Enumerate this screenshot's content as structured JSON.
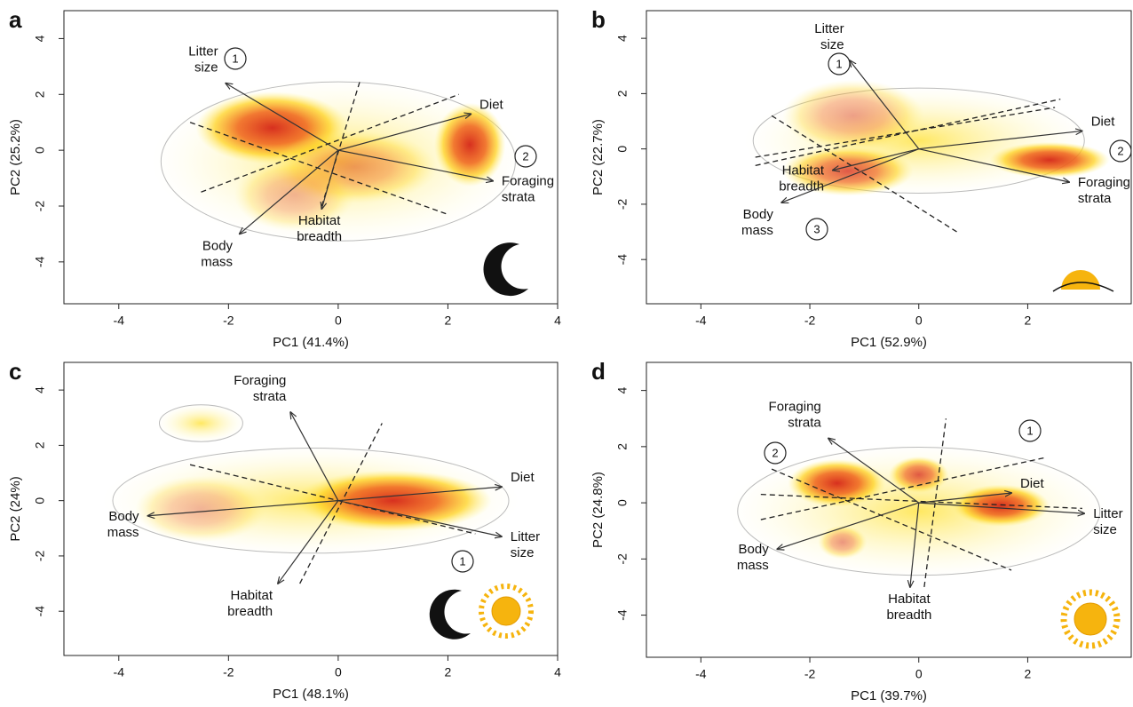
{
  "chart_data": [
    {
      "type": "biplot",
      "panel": "a",
      "xlabel": "PC1 (41.4%)",
      "ylabel": "PC2 (25.2%)",
      "xlim": [
        -5,
        4
      ],
      "ylim": [
        -5.5,
        5
      ],
      "xticks": [
        -4,
        -2,
        0,
        2,
        4
      ],
      "yticks": [
        4,
        2,
        0,
        -2,
        -4
      ],
      "arrows": [
        {
          "label": [
            "Litter",
            "size"
          ],
          "x": -2.05,
          "y": 2.4
        },
        {
          "label": [
            "Diet"
          ],
          "x": 2.42,
          "y": 1.3
        },
        {
          "label": [
            "Foraging",
            "strata"
          ],
          "x": 2.82,
          "y": -1.1
        },
        {
          "label": [
            "Habitat",
            "breadth"
          ],
          "x": -0.3,
          "y": -2.1
        },
        {
          "label": [
            "Body",
            "mass"
          ],
          "x": -1.8,
          "y": -3.0
        }
      ],
      "annotations": [
        "1",
        "2"
      ]
    },
    {
      "type": "biplot",
      "panel": "b",
      "xlabel": "PC1 (52.9%)",
      "ylabel": "PC2 (22.7%)",
      "xlim": [
        -5,
        3.9
      ],
      "ylim": [
        -5.6,
        5
      ],
      "xticks": [
        -4,
        -2,
        0,
        2
      ],
      "yticks": [
        4,
        2,
        0,
        -2,
        -4
      ],
      "arrows": [
        {
          "label": [
            "Litter",
            "size"
          ],
          "x": -1.27,
          "y": 3.2
        },
        {
          "label": [
            "Diet"
          ],
          "x": 3.0,
          "y": 0.65
        },
        {
          "label": [
            "Foraging",
            "strata"
          ],
          "x": 2.76,
          "y": -1.2
        },
        {
          "label": [
            "Habitat",
            "breadth"
          ],
          "x": -1.58,
          "y": -0.77
        },
        {
          "label": [
            "Body",
            "mass"
          ],
          "x": -2.52,
          "y": -1.94
        }
      ],
      "annotations": [
        "1",
        "2",
        "3"
      ]
    },
    {
      "type": "biplot",
      "panel": "c",
      "xlabel": "PC1 (48.1%)",
      "ylabel": "PC2 (24%)",
      "xlim": [
        -5,
        4
      ],
      "ylim": [
        -5.6,
        5
      ],
      "xticks": [
        -4,
        -2,
        0,
        2,
        4
      ],
      "yticks": [
        4,
        2,
        0,
        -2,
        -4
      ],
      "arrows": [
        {
          "label": [
            "Foraging",
            "strata"
          ],
          "x": -0.87,
          "y": 3.2
        },
        {
          "label": [
            "Diet"
          ],
          "x": 2.98,
          "y": 0.5
        },
        {
          "label": [
            "Litter",
            "size"
          ],
          "x": 2.98,
          "y": -1.3
        },
        {
          "label": [
            "Habitat",
            "breadth"
          ],
          "x": -1.1,
          "y": -3.0
        },
        {
          "label": [
            "Body",
            "mass"
          ],
          "x": -3.47,
          "y": -0.55
        }
      ],
      "annotations": [
        "1"
      ]
    },
    {
      "type": "biplot",
      "panel": "d",
      "xlabel": "PC1 (39.7%)",
      "ylabel": "PC2 (24.8%)",
      "xlim": [
        -5,
        3.9
      ],
      "ylim": [
        -5.5,
        5
      ],
      "xticks": [
        -4,
        -2,
        0,
        2
      ],
      "yticks": [
        4,
        2,
        0,
        -2,
        -4
      ],
      "arrows": [
        {
          "label": [
            "Foraging",
            "strata"
          ],
          "x": -1.66,
          "y": 2.3
        },
        {
          "label": [
            "Diet"
          ],
          "x": 1.7,
          "y": 0.35
        },
        {
          "label": [
            "Litter",
            "size"
          ],
          "x": 3.04,
          "y": -0.38
        },
        {
          "label": [
            "Habitat",
            "breadth"
          ],
          "x": -0.16,
          "y": -3.0
        },
        {
          "label": [
            "Body",
            "mass"
          ],
          "x": -2.6,
          "y": -1.65
        }
      ],
      "annotations": [
        "1",
        "2"
      ]
    }
  ]
}
